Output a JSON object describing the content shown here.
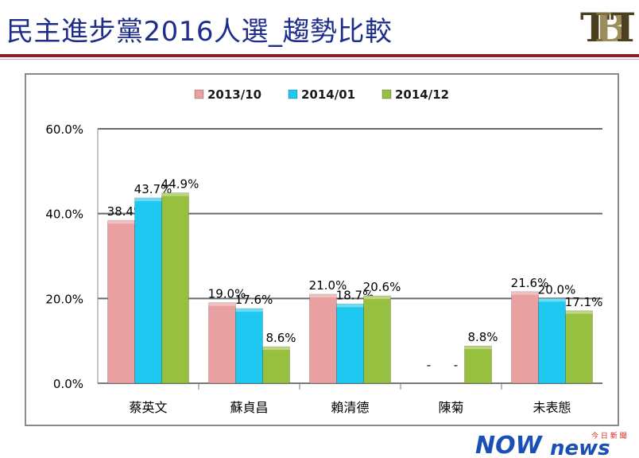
{
  "header": {
    "title": "民主進步黨2016人選_趨勢比較",
    "logo_text": "TBT",
    "colors": {
      "title": "#1f2d8a",
      "rule": "#8b1c2c",
      "logo": "#4a4020"
    }
  },
  "footer": {
    "brand_text": "NOWnews",
    "brand_sub": "今日新聞",
    "colors": {
      "brand_blue": "#1a4fb5",
      "brand_red": "#d8261e"
    }
  },
  "chart_data": {
    "type": "bar",
    "categories": [
      "蔡英文",
      "蘇貞昌",
      "賴清德",
      "陳菊",
      "未表態"
    ],
    "series": [
      {
        "name": "2013/10",
        "color": "#e8a0a0",
        "values": [
          38.4,
          19.0,
          21.0,
          null,
          21.6
        ],
        "labels": [
          "38.4%",
          "19.0%",
          "21.0%",
          "-",
          "21.6%"
        ]
      },
      {
        "name": "2014/01",
        "color": "#1ec8f0",
        "values": [
          43.7,
          17.6,
          18.7,
          null,
          20.0
        ],
        "labels": [
          "43.7%",
          "17.6%",
          "18.7%",
          "-",
          "20.0%"
        ]
      },
      {
        "name": "2014/12",
        "color": "#98c040",
        "values": [
          44.9,
          8.6,
          20.6,
          8.8,
          17.1
        ],
        "labels": [
          "44.9%",
          "8.6%",
          "20.6%",
          "8.8%",
          "17.1%"
        ]
      }
    ],
    "ylim": [
      0,
      60
    ],
    "yticks": [
      0,
      20,
      40,
      60
    ],
    "ytick_labels": [
      "0.0%",
      "20.0%",
      "40.0%",
      "60.0%"
    ],
    "grid": true,
    "legend_position": "top"
  }
}
